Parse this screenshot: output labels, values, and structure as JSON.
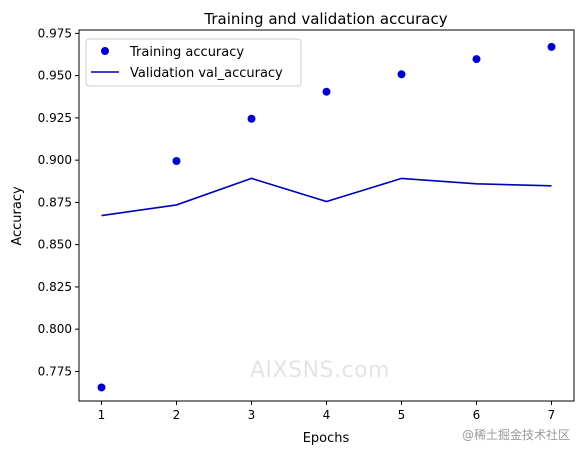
{
  "chart_data": {
    "type": "scatter+line",
    "title": "Training and validation accuracy",
    "xlabel": "Epochs",
    "ylabel": "Accuracy",
    "x_ticks": [
      1,
      2,
      3,
      4,
      5,
      6,
      7
    ],
    "y_ticks": [
      "0.775",
      "0.800",
      "0.825",
      "0.850",
      "0.875",
      "0.900",
      "0.925",
      "0.950",
      "0.975"
    ],
    "xlim": [
      0.7,
      7.3
    ],
    "ylim": [
      0.7575,
      0.977
    ],
    "grid": false,
    "legend_position": "top-left",
    "series": [
      {
        "name": "Training accuracy",
        "style": "markers",
        "color": "#0000cc",
        "x": [
          1,
          2,
          3,
          4,
          5,
          6,
          7
        ],
        "values": [
          0.7655,
          0.8995,
          0.9245,
          0.9405,
          0.9508,
          0.9598,
          0.967
        ]
      },
      {
        "name": "Validation val_accuracy",
        "style": "line",
        "color": "#0000b8",
        "x": [
          1,
          2,
          3,
          4,
          5,
          6,
          7
        ],
        "values": [
          0.8672,
          0.8735,
          0.8892,
          0.8755,
          0.8892,
          0.886,
          0.8848
        ]
      }
    ]
  },
  "watermark": "AIXSNS.com",
  "credit": "@稀土掘金技术社区"
}
